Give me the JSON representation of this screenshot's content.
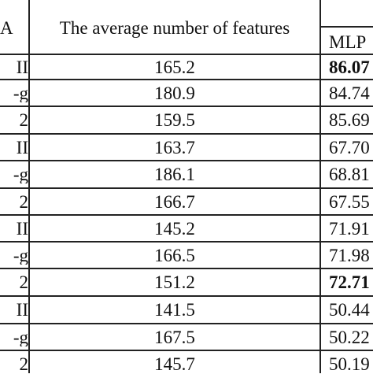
{
  "header": {
    "col1_label": "A",
    "col2_label": "The average number of features",
    "col3_label": "MLP"
  },
  "rows": [
    {
      "method": "II",
      "avg_features": "165.2",
      "mlp": "86.07",
      "mlp_bold": true
    },
    {
      "method": "-g",
      "avg_features": "180.9",
      "mlp": "84.74",
      "mlp_bold": false
    },
    {
      "method": "2",
      "avg_features": "159.5",
      "mlp": "85.69",
      "mlp_bold": false
    },
    {
      "method": "II",
      "avg_features": "163.7",
      "mlp": "67.70",
      "mlp_bold": false
    },
    {
      "method": "-g",
      "avg_features": "186.1",
      "mlp": "68.81",
      "mlp_bold": false
    },
    {
      "method": "2",
      "avg_features": "166.7",
      "mlp": "67.55",
      "mlp_bold": false
    },
    {
      "method": "II",
      "avg_features": "145.2",
      "mlp": "71.91",
      "mlp_bold": false
    },
    {
      "method": "-g",
      "avg_features": "166.5",
      "mlp": "71.98",
      "mlp_bold": false
    },
    {
      "method": "2",
      "avg_features": "151.2",
      "mlp": "72.71",
      "mlp_bold": true
    },
    {
      "method": "II",
      "avg_features": "141.5",
      "mlp": "50.44",
      "mlp_bold": false
    },
    {
      "method": "-g",
      "avg_features": "167.5",
      "mlp": "50.22",
      "mlp_bold": false
    },
    {
      "method": "2",
      "avg_features": "145.7",
      "mlp": "50.19",
      "mlp_bold": false
    }
  ]
}
